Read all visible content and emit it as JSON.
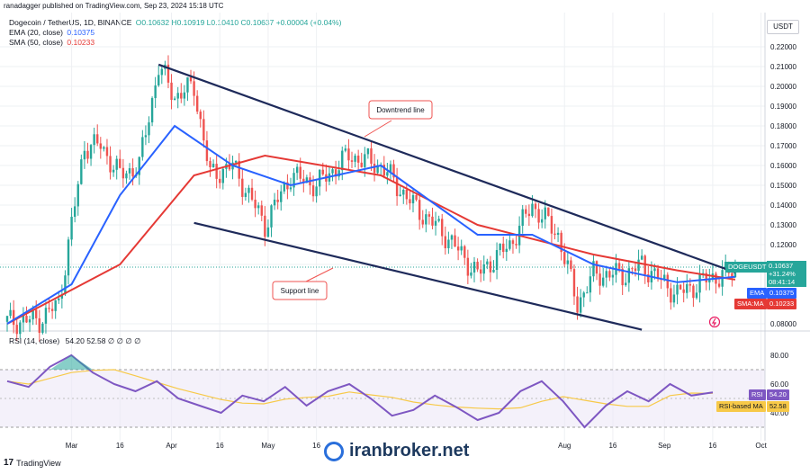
{
  "topbar": {
    "text": "ranadagger published on TradingView.com, Sep 23, 2024 15:18 UTC"
  },
  "header": {
    "symbol": "Dogecoin / TetherUS, 1D, BINANCE",
    "ohlc": "O0.10632 H0.10919 L0.10410 C0.10637 +0.00004 (+0.04%)",
    "ema_label": "EMA (20, close)",
    "ema_value": "0.10375",
    "sma_label": "SMA (50, close)",
    "sma_value": "0.10233"
  },
  "currency_button": "USDT",
  "rsi_header": {
    "label": "RSI (14, close)",
    "values": "54.20  52.58  ∅  ∅  ∅  ∅"
  },
  "price_tags": {
    "symbol": "DOGEUSDT",
    "price": "0.10637",
    "change": "+31.24%",
    "countdown": "08:41:14",
    "ema_tag": "EMA",
    "ema_value": "0.10375",
    "sma_tag": "SMA:MA",
    "sma_value": "0.10233",
    "rsi_tag": "RSI",
    "rsi_value": "54.20",
    "rsima_tag": "RSI-based MA",
    "rsima_value": "52.58"
  },
  "annotations": {
    "downtrend": "Downtrend line",
    "support": "Support line"
  },
  "footer": {
    "brand": "TradingView"
  },
  "watermark": {
    "text": "iranbroker.net"
  },
  "colors": {
    "candle_up": "#26a69a",
    "candle_down": "#ef5350",
    "ema": "#2962ff",
    "sma": "#e53935",
    "trend": "#1e2a5a",
    "rsi": "#7e57c2",
    "rsi_ma": "#f7c948"
  },
  "chart_data": {
    "type": "candlestick",
    "title": "Dogecoin / TetherUS, 1D, BINANCE",
    "y_axis_ticks": [
      "0.22000",
      "0.21000",
      "0.20000",
      "0.19000",
      "0.18000",
      "0.17000",
      "0.16000",
      "0.15000",
      "0.14000",
      "0.13000",
      "0.12000",
      "0.11000",
      "0.08000"
    ],
    "ylim": [
      0.08,
      0.23
    ],
    "x_axis_ticks": [
      "Mar",
      "16",
      "Apr",
      "16",
      "May",
      "16",
      "Aug",
      "16",
      "Sep",
      "16",
      "Oct"
    ],
    "rsi_axis_ticks": [
      "80.00",
      "60.00",
      "40.00"
    ],
    "rsi_levels": [
      70,
      30
    ],
    "close_path": [
      {
        "x": "2024-02-10",
        "y": 0.081
      },
      {
        "x": "2024-02-20",
        "y": 0.082
      },
      {
        "x": "2024-02-26",
        "y": 0.09
      },
      {
        "x": "2024-03-01",
        "y": 0.13
      },
      {
        "x": "2024-03-05",
        "y": 0.17
      },
      {
        "x": "2024-03-10",
        "y": 0.17
      },
      {
        "x": "2024-03-16",
        "y": 0.155
      },
      {
        "x": "2024-03-22",
        "y": 0.16
      },
      {
        "x": "2024-03-28",
        "y": 0.21
      },
      {
        "x": "2024-04-02",
        "y": 0.195
      },
      {
        "x": "2024-04-08",
        "y": 0.2
      },
      {
        "x": "2024-04-13",
        "y": 0.155
      },
      {
        "x": "2024-04-20",
        "y": 0.16
      },
      {
        "x": "2024-04-30",
        "y": 0.13
      },
      {
        "x": "2024-05-08",
        "y": 0.155
      },
      {
        "x": "2024-05-16",
        "y": 0.15
      },
      {
        "x": "2024-05-26",
        "y": 0.165
      },
      {
        "x": "2024-06-05",
        "y": 0.16
      },
      {
        "x": "2024-06-15",
        "y": 0.14
      },
      {
        "x": "2024-06-25",
        "y": 0.125
      },
      {
        "x": "2024-07-05",
        "y": 0.105
      },
      {
        "x": "2024-07-15",
        "y": 0.12
      },
      {
        "x": "2024-07-22",
        "y": 0.14
      },
      {
        "x": "2024-07-30",
        "y": 0.125
      },
      {
        "x": "2024-08-05",
        "y": 0.09
      },
      {
        "x": "2024-08-10",
        "y": 0.105
      },
      {
        "x": "2024-08-20",
        "y": 0.105
      },
      {
        "x": "2024-08-25",
        "y": 0.11
      },
      {
        "x": "2024-09-05",
        "y": 0.095
      },
      {
        "x": "2024-09-15",
        "y": 0.103
      },
      {
        "x": "2024-09-23",
        "y": 0.10637
      }
    ],
    "ema20_path": [
      {
        "x": "2024-02-10",
        "y": 0.08
      },
      {
        "x": "2024-03-01",
        "y": 0.1
      },
      {
        "x": "2024-03-16",
        "y": 0.145
      },
      {
        "x": "2024-04-02",
        "y": 0.18
      },
      {
        "x": "2024-04-20",
        "y": 0.16
      },
      {
        "x": "2024-05-08",
        "y": 0.15
      },
      {
        "x": "2024-06-05",
        "y": 0.16
      },
      {
        "x": "2024-07-05",
        "y": 0.125
      },
      {
        "x": "2024-07-22",
        "y": 0.125
      },
      {
        "x": "2024-08-10",
        "y": 0.11
      },
      {
        "x": "2024-09-05",
        "y": 0.101
      },
      {
        "x": "2024-09-23",
        "y": 0.10375
      }
    ],
    "sma50_path": [
      {
        "x": "2024-02-10",
        "y": 0.08
      },
      {
        "x": "2024-03-16",
        "y": 0.11
      },
      {
        "x": "2024-04-08",
        "y": 0.155
      },
      {
        "x": "2024-04-30",
        "y": 0.165
      },
      {
        "x": "2024-06-05",
        "y": 0.155
      },
      {
        "x": "2024-07-05",
        "y": 0.13
      },
      {
        "x": "2024-08-10",
        "y": 0.115
      },
      {
        "x": "2024-09-05",
        "y": 0.107
      },
      {
        "x": "2024-09-23",
        "y": 0.10233
      }
    ],
    "downtrend_line": [
      {
        "x": "2024-03-28",
        "y": 0.211
      },
      {
        "x": "2024-09-23",
        "y": 0.106
      }
    ],
    "support_line": [
      {
        "x": "2024-04-08",
        "y": 0.131
      },
      {
        "x": "2024-08-25",
        "y": 0.077
      }
    ],
    "rsi_series": [
      62,
      58,
      72,
      80,
      68,
      60,
      55,
      62,
      50,
      45,
      40,
      52,
      48,
      58,
      45,
      55,
      60,
      50,
      38,
      42,
      52,
      44,
      35,
      40,
      55,
      62,
      48,
      30,
      45,
      55,
      48,
      60,
      52,
      54.2
    ]
  }
}
